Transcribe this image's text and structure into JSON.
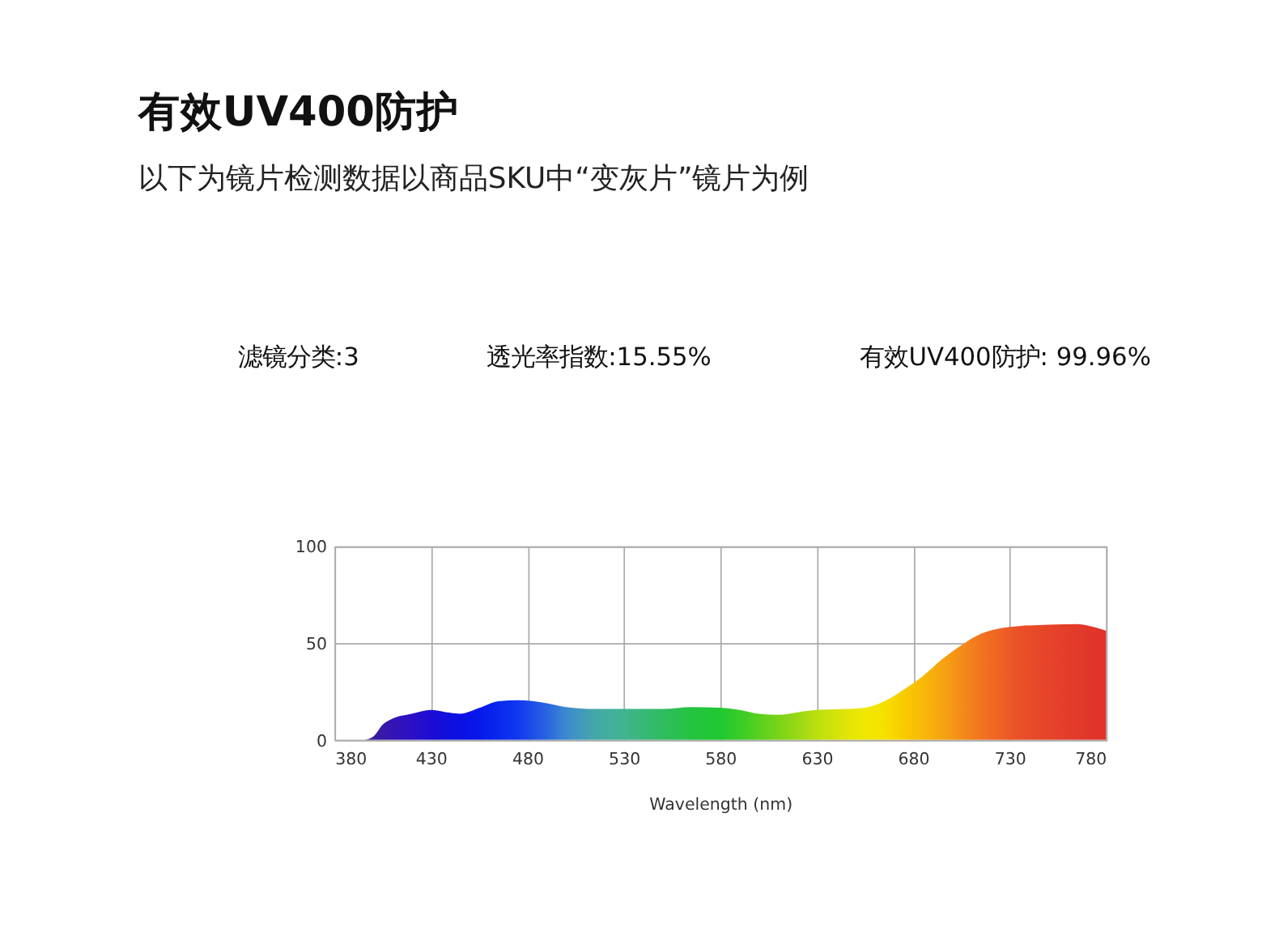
{
  "chart_data": {
    "type": "area",
    "title": "有效UV400防护",
    "subtitle": "以下为镜片检测数据以商品SKU中“变灰片”镜片为例",
    "annotations": [
      "滤镜分类:3",
      "透光率指数:15.55%",
      "有效UV400防护: 99.96%"
    ],
    "xlabel": "Wavelength (nm)",
    "x": [
      380,
      390,
      395,
      400,
      405,
      410,
      420,
      430,
      440,
      445,
      455,
      465,
      475,
      490,
      500,
      515,
      530,
      550,
      565,
      580,
      590,
      600,
      610,
      620,
      630,
      645,
      655,
      665,
      675,
      685,
      695,
      705,
      715,
      725,
      735,
      750,
      765,
      775,
      780
    ],
    "values": [
      0,
      0,
      0,
      1.7,
      8,
      11,
      13.5,
      15.5,
      14,
      13.5,
      16.5,
      20,
      20.5,
      19,
      17,
      16,
      16,
      16,
      17,
      16.7,
      15.5,
      13.5,
      13,
      14.3,
      15.5,
      16,
      16.7,
      20,
      26,
      33,
      41.7,
      49,
      54.8,
      57.6,
      58.8,
      59.5,
      59.8,
      57.9,
      56.4
    ],
    "colors": [
      "#3a1a9a",
      "#3a1a9a",
      "#3a1a9a",
      "#3a1a9a",
      "#3818a8",
      "#3414b4",
      "#2c10c4",
      "#1c0cd4",
      "#1010e0",
      "#0c10e4",
      "#0818ea",
      "#0828ee",
      "#1038f0",
      "#2a64e0",
      "#3c8ad0",
      "#44a8a8",
      "#40b490",
      "#30bc60",
      "#24c440",
      "#20c830",
      "#38cc28",
      "#58d020",
      "#78d418",
      "#98d814",
      "#bce010",
      "#e0e408",
      "#f0e800",
      "#f6e000",
      "#f8cc00",
      "#f8b808",
      "#f6a410",
      "#f48c18",
      "#f27420",
      "#ee6224",
      "#ea5028",
      "#e6442a",
      "#e23a2a",
      "#e0342a",
      "#e0302a"
    ],
    "xlim": [
      380,
      780
    ],
    "ylim": [
      0,
      100
    ],
    "xticks": [
      380,
      430,
      480,
      530,
      580,
      630,
      680,
      730,
      780
    ],
    "yticks": [
      0,
      50,
      100
    ],
    "grid": true
  }
}
